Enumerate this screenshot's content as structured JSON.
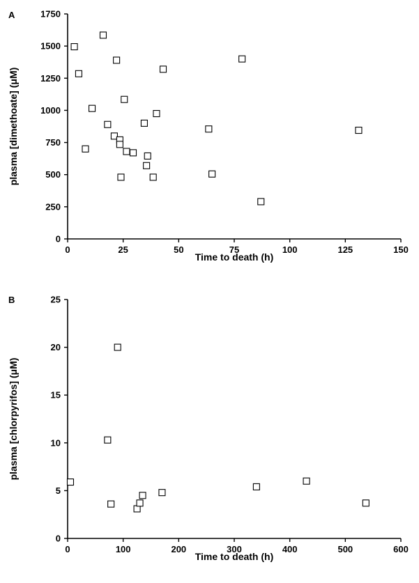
{
  "chart_data": [
    {
      "type": "scatter",
      "panel": "A",
      "xlabel": "Time to death (h)",
      "ylabel": "plasma [dimethoate] (μM)",
      "xlim": [
        0,
        150
      ],
      "ylim": [
        0,
        1750
      ],
      "xticks": [
        0,
        25,
        50,
        75,
        100,
        125,
        150
      ],
      "yticks": [
        0,
        250,
        500,
        750,
        1000,
        1250,
        1500,
        1750
      ],
      "marker": "open-square",
      "grid": false,
      "points": [
        {
          "x": 3,
          "y": 1495
        },
        {
          "x": 5,
          "y": 1285
        },
        {
          "x": 8,
          "y": 700
        },
        {
          "x": 11,
          "y": 1015
        },
        {
          "x": 16,
          "y": 1585
        },
        {
          "x": 18,
          "y": 890
        },
        {
          "x": 21,
          "y": 800
        },
        {
          "x": 22,
          "y": 1390
        },
        {
          "x": 23.5,
          "y": 770
        },
        {
          "x": 23.5,
          "y": 735
        },
        {
          "x": 24,
          "y": 480
        },
        {
          "x": 25.5,
          "y": 1085
        },
        {
          "x": 26.5,
          "y": 680
        },
        {
          "x": 29.5,
          "y": 670
        },
        {
          "x": 34.5,
          "y": 900
        },
        {
          "x": 35.5,
          "y": 570
        },
        {
          "x": 36,
          "y": 645
        },
        {
          "x": 38.5,
          "y": 480
        },
        {
          "x": 40,
          "y": 975
        },
        {
          "x": 43,
          "y": 1320
        },
        {
          "x": 63.5,
          "y": 855
        },
        {
          "x": 65,
          "y": 505
        },
        {
          "x": 78.5,
          "y": 1400
        },
        {
          "x": 87,
          "y": 290
        },
        {
          "x": 131,
          "y": 845
        }
      ]
    },
    {
      "type": "scatter",
      "panel": "B",
      "xlabel": "Time to death (h)",
      "ylabel": "plasma [chlorpyrifos] (μM)",
      "xlim": [
        0,
        600
      ],
      "ylim": [
        0,
        25
      ],
      "xticks": [
        0,
        100,
        200,
        300,
        400,
        500,
        600
      ],
      "yticks": [
        0,
        5,
        10,
        15,
        20,
        25
      ],
      "marker": "open-square",
      "grid": false,
      "points": [
        {
          "x": 5,
          "y": 5.9
        },
        {
          "x": 72,
          "y": 10.3
        },
        {
          "x": 78,
          "y": 3.6
        },
        {
          "x": 90,
          "y": 20.0
        },
        {
          "x": 125,
          "y": 3.1
        },
        {
          "x": 130,
          "y": 3.7
        },
        {
          "x": 135,
          "y": 4.5
        },
        {
          "x": 170,
          "y": 4.8
        },
        {
          "x": 340,
          "y": 5.4
        },
        {
          "x": 430,
          "y": 6.0
        },
        {
          "x": 537,
          "y": 3.7
        }
      ]
    }
  ]
}
